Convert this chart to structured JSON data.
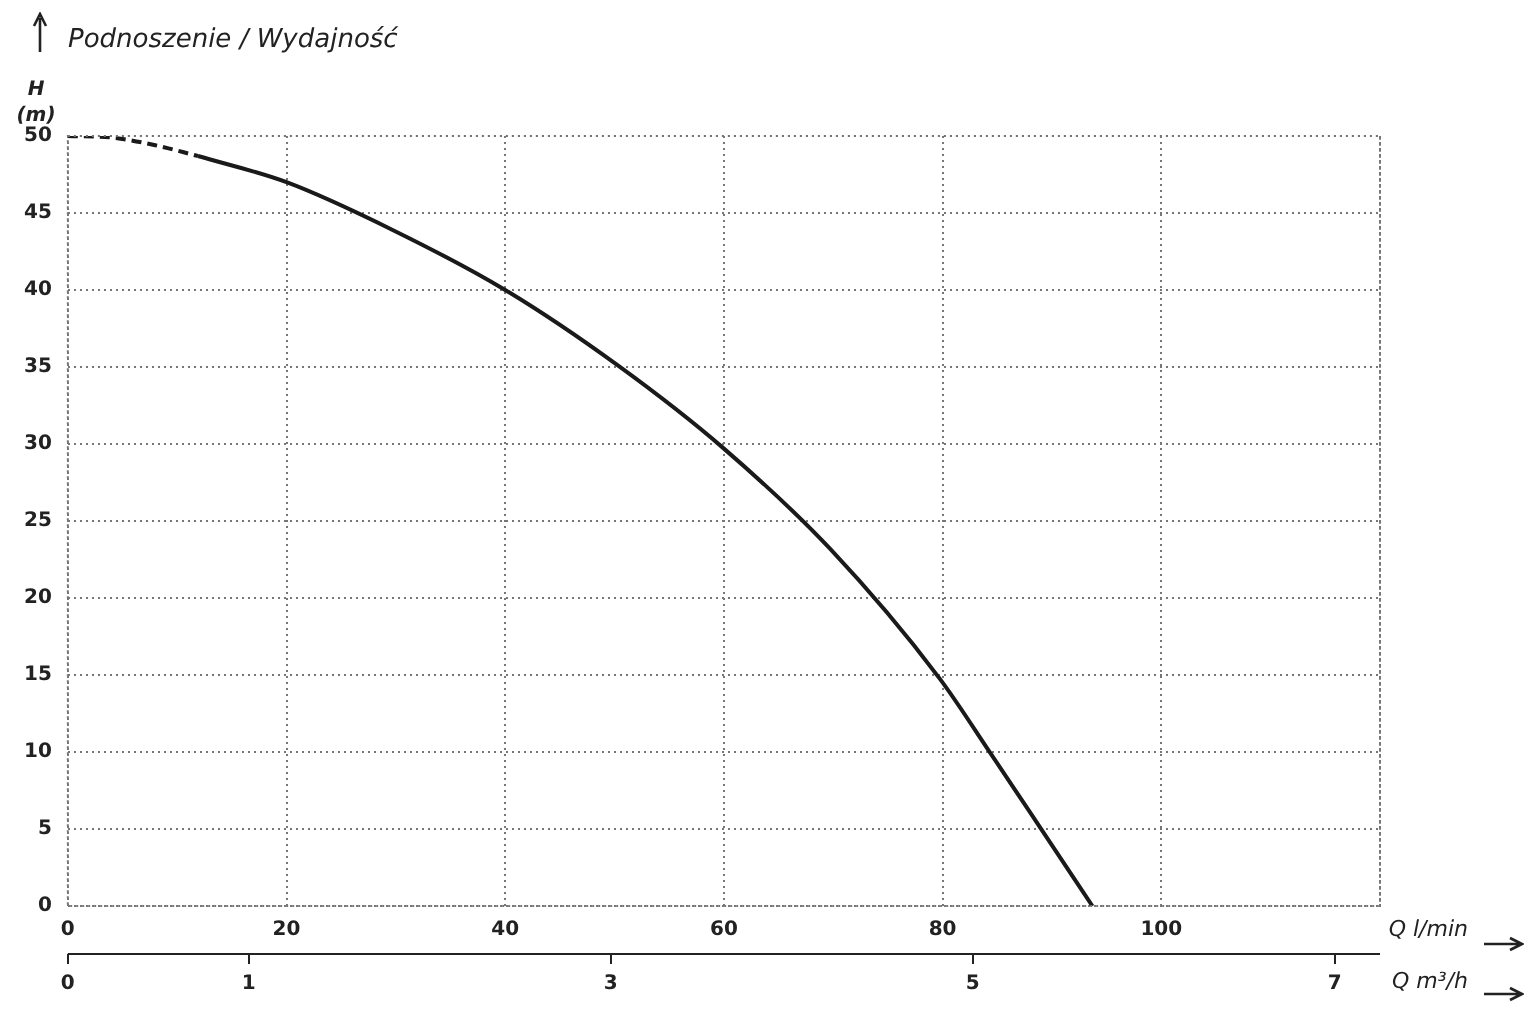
{
  "chart_data": {
    "type": "line",
    "title": "Podnoszenie / Wydajność",
    "ylabel": "H (m)",
    "xlabel": "Q l/min",
    "x2label": "Q m³/h",
    "series": [
      {
        "color": "#1a1a1a",
        "line_style": "dashed",
        "x": [
          0,
          4,
          8,
          11.9
        ],
        "values": [
          50,
          49.9,
          49.4,
          48.7
        ]
      },
      {
        "color": "#1a1a1a",
        "line_style": "solid",
        "x": [
          11.9,
          20,
          29.7,
          40,
          50.3,
          60,
          69.7,
          79.7,
          84.4,
          89.2,
          93.7
        ],
        "values": [
          48.7,
          47,
          43.9,
          40,
          35.1,
          29.7,
          23.2,
          14.8,
          9.9,
          4.8,
          0
        ]
      }
    ],
    "xlim": [
      0,
      120
    ],
    "xticks": [
      0,
      20,
      40,
      60,
      80,
      100,
      {
        "value": 120,
        "label": null
      }
    ],
    "x2lim": [
      0,
      7.25
    ],
    "x2ticks": [
      0,
      1,
      3,
      5,
      7
    ],
    "ylim": [
      0,
      50
    ],
    "yticks": [
      0,
      5,
      10,
      15,
      20,
      25,
      30,
      35,
      40,
      45,
      50
    ],
    "grid": true,
    "legend": false,
    "marker": "none"
  }
}
